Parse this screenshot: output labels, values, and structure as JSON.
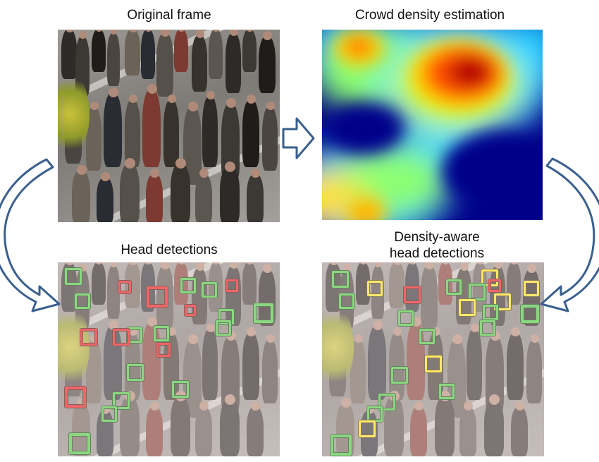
{
  "titles": {
    "original": "Original frame",
    "density": "Crowd density estimation",
    "head": "Head detections",
    "aware_line1": "Density-aware",
    "aware_line2": "head detections"
  },
  "colors": {
    "arrow_fill": "#ffffff",
    "arrow_stroke": "#3a5f8e",
    "box_green": "#45c83e",
    "box_red": "#e41414",
    "box_yellow": "#ffe31a"
  },
  "icons": [
    "arrow-right-icon",
    "curved-arrow-left-icon",
    "curved-arrow-right-icon"
  ]
}
